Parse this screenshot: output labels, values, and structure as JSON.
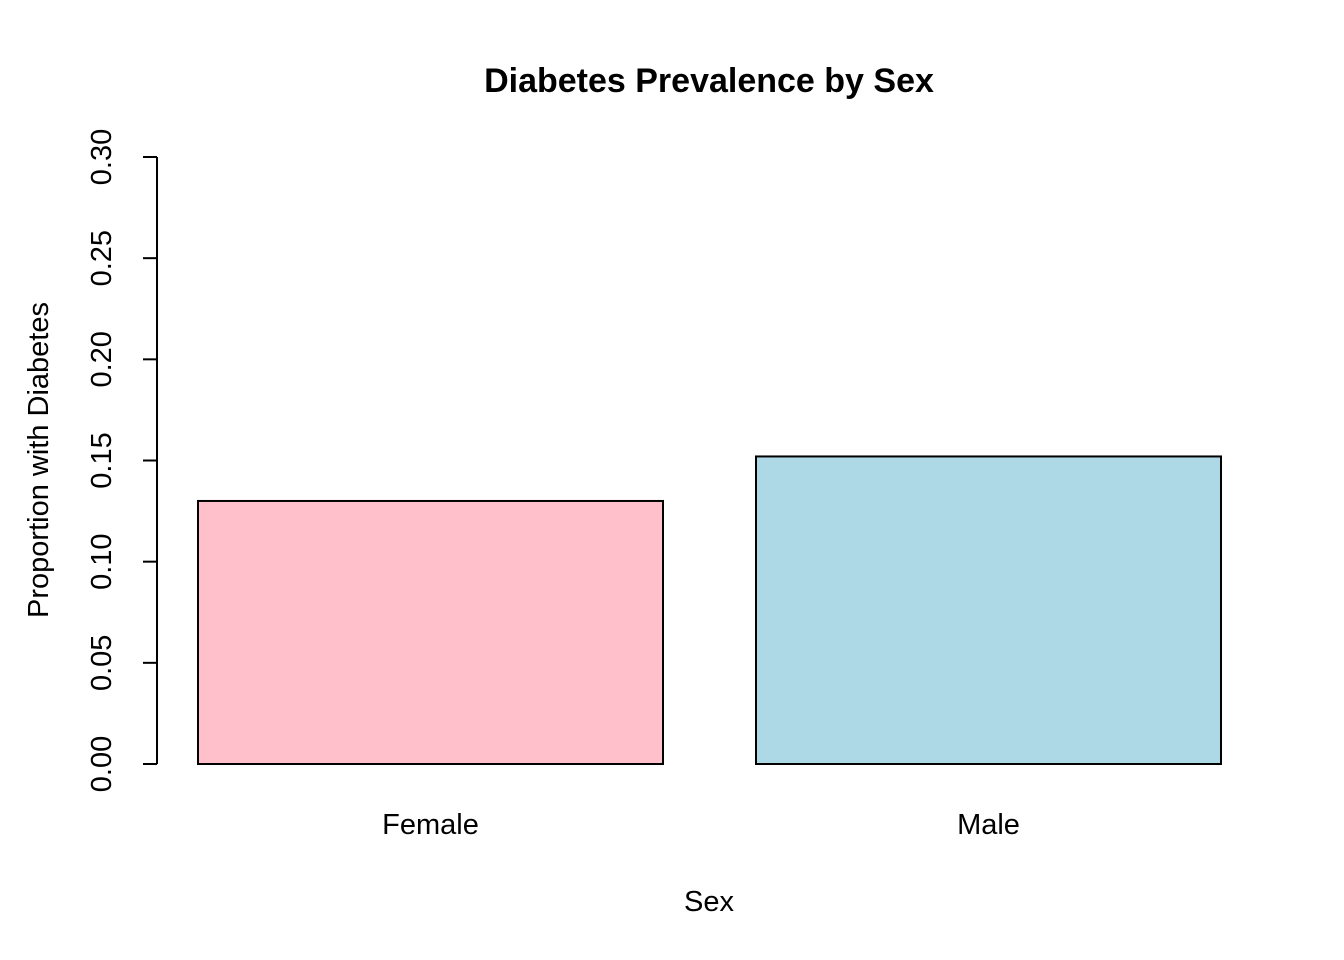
{
  "chart_data": {
    "type": "bar",
    "title": "Diabetes Prevalence by Sex",
    "xlabel": "Sex",
    "ylabel": "Proportion with Diabetes",
    "categories": [
      "Female",
      "Male"
    ],
    "values": [
      0.13,
      0.152
    ],
    "colors": [
      "#ffc0cb",
      "#add8e6"
    ],
    "ylim": [
      0,
      0.3
    ],
    "yticks": [
      "0.00",
      "0.05",
      "0.10",
      "0.15",
      "0.20",
      "0.25",
      "0.30"
    ],
    "grid": false,
    "legend": "none"
  }
}
